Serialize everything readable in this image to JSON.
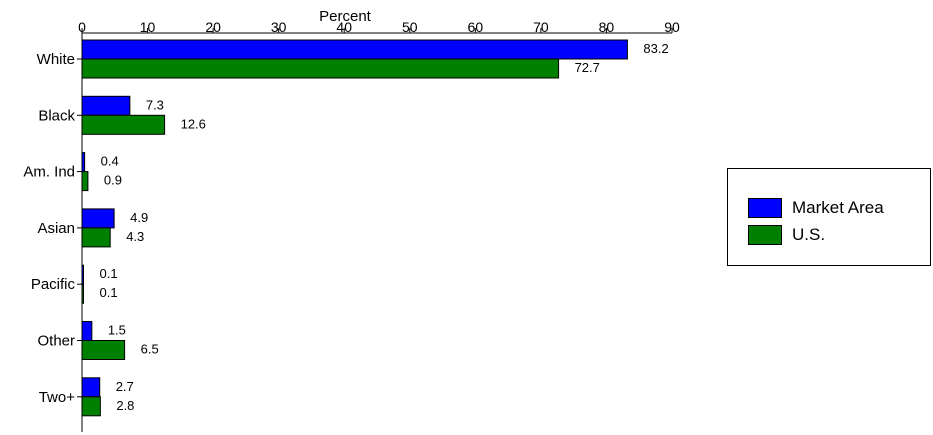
{
  "chart_data": {
    "type": "bar",
    "orientation": "horizontal",
    "xlabel": "Percent",
    "xlim": [
      0,
      90
    ],
    "xticks": [
      "0",
      "10",
      "20",
      "30",
      "40",
      "50",
      "60",
      "70",
      "80",
      "90"
    ],
    "categories": [
      "White",
      "Black",
      "Am. Ind",
      "Asian",
      "Pacific",
      "Other",
      "Two+"
    ],
    "series": [
      {
        "name": "Market Area",
        "color": "#0000ff",
        "values": [
          83.2,
          7.3,
          0.4,
          4.9,
          0.1,
          1.5,
          2.7
        ],
        "labels": [
          "83.2",
          "7.3",
          "0.4",
          "4.9",
          "0.1",
          "1.5",
          "2.7"
        ]
      },
      {
        "name": "U.S.",
        "color": "#008000",
        "values": [
          72.7,
          12.6,
          0.9,
          4.3,
          0.1,
          6.5,
          2.8
        ],
        "labels": [
          "72.7",
          "12.6",
          "0.9",
          "4.3",
          "0.1",
          "6.5",
          "2.8"
        ]
      }
    ],
    "axis_position": "top",
    "grid": false,
    "legend_position": "right"
  }
}
